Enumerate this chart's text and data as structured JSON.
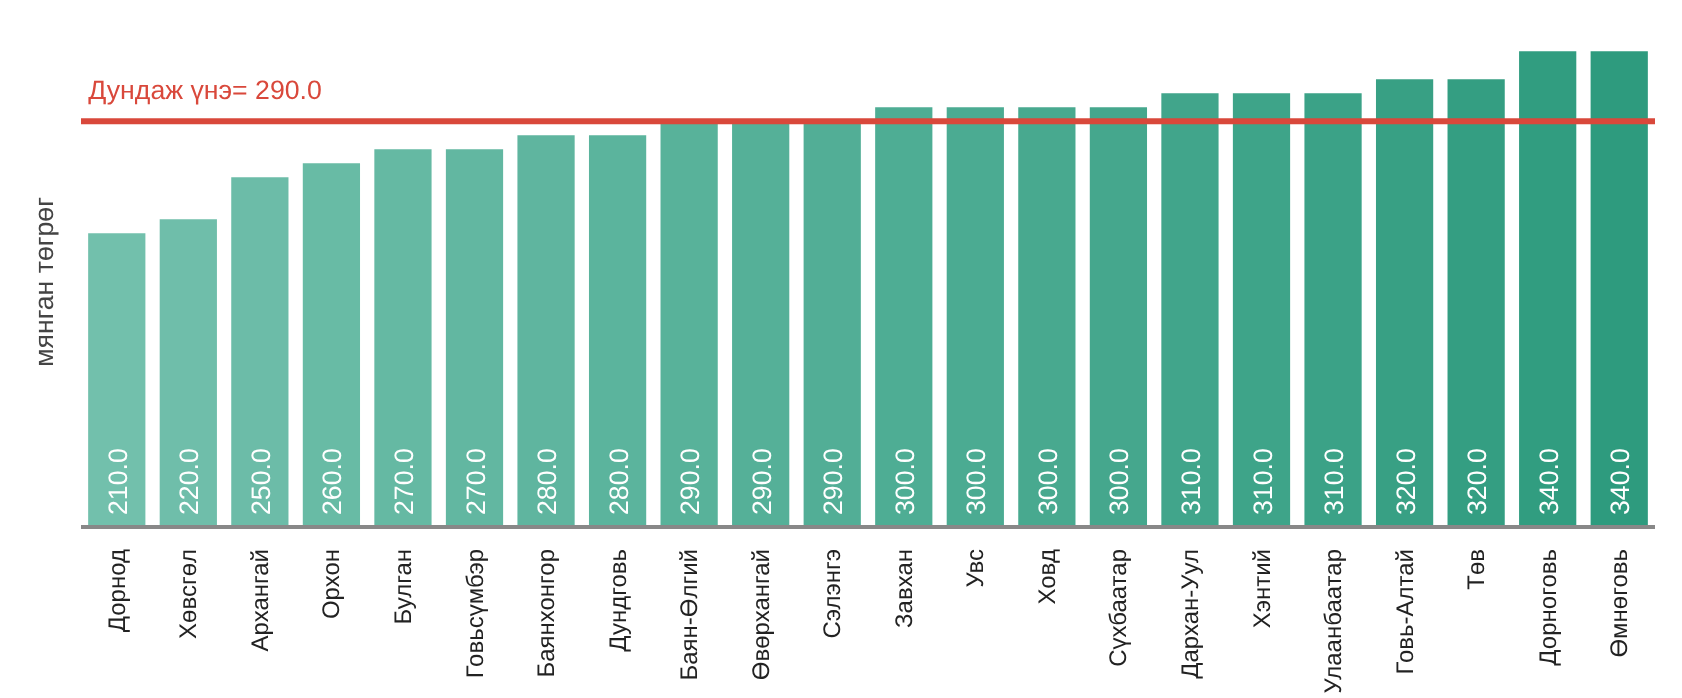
{
  "chart_data": {
    "type": "bar",
    "ylabel": "мянган төгрөг",
    "categories": [
      "Дорнод",
      "Хөвсгөл",
      "Архангай",
      "Орхон",
      "Булган",
      "Говьсүмбэр",
      "Баянхонгор",
      "Дундговь",
      "Баян-Өлгий",
      "Өвөрхангай",
      "Сэлэнгэ",
      "Завхан",
      "Увс",
      "Ховд",
      "Сүхбаатар",
      "Дархан-Уул",
      "Хэнтий",
      "Улаанбаатар",
      "Говь-Алтай",
      "Төв",
      "Дорноговь",
      "Өмнөговь"
    ],
    "values": [
      210,
      220,
      250,
      260,
      270,
      270,
      280,
      280,
      290,
      290,
      290,
      300,
      300,
      300,
      300,
      310,
      310,
      310,
      320,
      320,
      340,
      340
    ],
    "value_labels": [
      "210.0",
      "220.0",
      "250.0",
      "260.0",
      "270.0",
      "270.0",
      "280.0",
      "280.0",
      "290.0",
      "290.0",
      "290.0",
      "300.0",
      "300.0",
      "300.0",
      "300.0",
      "310.0",
      "310.0",
      "310.0",
      "320.0",
      "320.0",
      "340.0",
      "340.0"
    ],
    "colors": [
      "#72c0ac",
      "#6fbeaa",
      "#6cbca8",
      "#68bba5",
      "#65b9a3",
      "#62b7a1",
      "#5fb59f",
      "#5bb49d",
      "#58b29a",
      "#55b098",
      "#52ae96",
      "#4ead94",
      "#4bab92",
      "#48a98f",
      "#45a78d",
      "#41a58b",
      "#3ea489",
      "#3ba287",
      "#38a084",
      "#349e82",
      "#319d80",
      "#2e9b7e"
    ],
    "tick_labels": "x",
    "grid": false,
    "ref_lines": [
      {
        "axis": "y",
        "value": 290,
        "label": "Дундаж үнэ= 290.0",
        "color": "#d9483b",
        "line_style": "solid"
      }
    ]
  }
}
